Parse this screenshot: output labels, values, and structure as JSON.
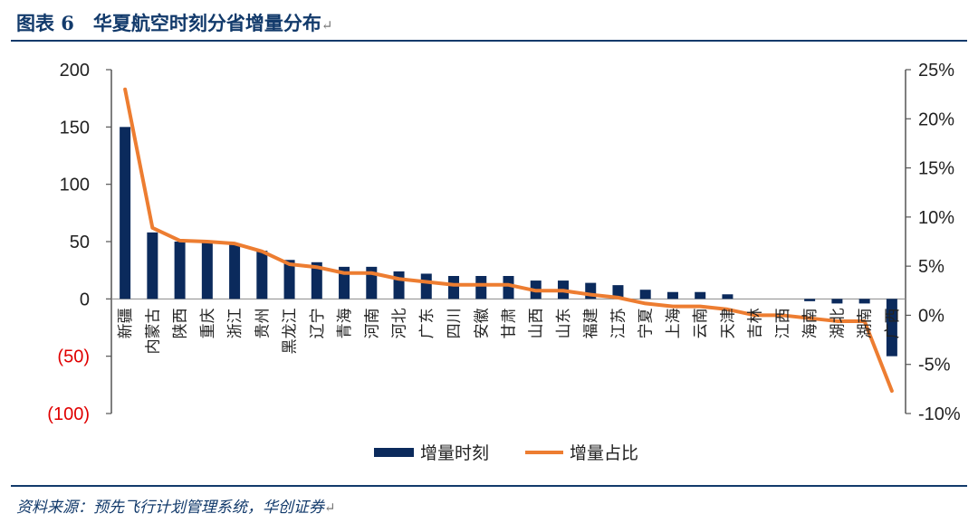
{
  "header": {
    "title": "图表 6　华夏航空时刻分省增量分布",
    "return_mark": "↵"
  },
  "footer": {
    "source": "资料来源：预先飞行计划管理系统，华创证券",
    "return_mark": "↵"
  },
  "colors": {
    "bar": "#0b2a5c",
    "line": "#ed7d31",
    "negative_tick": "#e00000",
    "brand": "#123a6b"
  },
  "chart_data": {
    "type": "bar",
    "title": "华夏航空时刻分省增量分布",
    "categories": [
      "新疆",
      "内蒙古",
      "陕西",
      "重庆",
      "浙江",
      "贵州",
      "黑龙江",
      "辽宁",
      "青海",
      "河南",
      "河北",
      "广东",
      "四川",
      "安徽",
      "甘肃",
      "山西",
      "山东",
      "福建",
      "江苏",
      "宁夏",
      "上海",
      "云南",
      "天津",
      "吉林",
      "江西",
      "海南",
      "湖北",
      "湖南",
      "广西"
    ],
    "series": [
      {
        "name": "增量时刻",
        "type": "bar",
        "axis": "left",
        "values": [
          150,
          58,
          50,
          49,
          48,
          42,
          34,
          32,
          28,
          28,
          24,
          22,
          20,
          20,
          20,
          16,
          16,
          14,
          12,
          8,
          6,
          6,
          4,
          0,
          0,
          -2,
          -4,
          -4,
          -50
        ]
      },
      {
        "name": "增量占比",
        "type": "line",
        "axis": "right",
        "values": [
          23.0,
          8.9,
          7.6,
          7.5,
          7.3,
          6.5,
          5.2,
          4.9,
          4.3,
          4.3,
          3.7,
          3.4,
          3.1,
          3.1,
          3.1,
          2.5,
          2.5,
          2.1,
          1.8,
          1.2,
          0.9,
          0.9,
          0.6,
          0.0,
          0.0,
          -0.3,
          -0.6,
          -0.6,
          -7.7
        ]
      }
    ],
    "left_axis": {
      "ylim": [
        -100,
        200
      ],
      "ticks": [
        200,
        150,
        100,
        50,
        0,
        -50,
        -100
      ],
      "tick_labels": [
        "200",
        "150",
        "100",
        "50",
        "0",
        "(50)",
        "(100)"
      ]
    },
    "right_axis": {
      "ylim": [
        -10,
        25
      ],
      "ticks": [
        25,
        20,
        15,
        10,
        5,
        0,
        -5,
        -10
      ],
      "tick_labels": [
        "25%",
        "20%",
        "15%",
        "10%",
        "5%",
        "0%",
        "-5%",
        "-10%"
      ]
    },
    "grid": false,
    "legend_position": "bottom"
  }
}
